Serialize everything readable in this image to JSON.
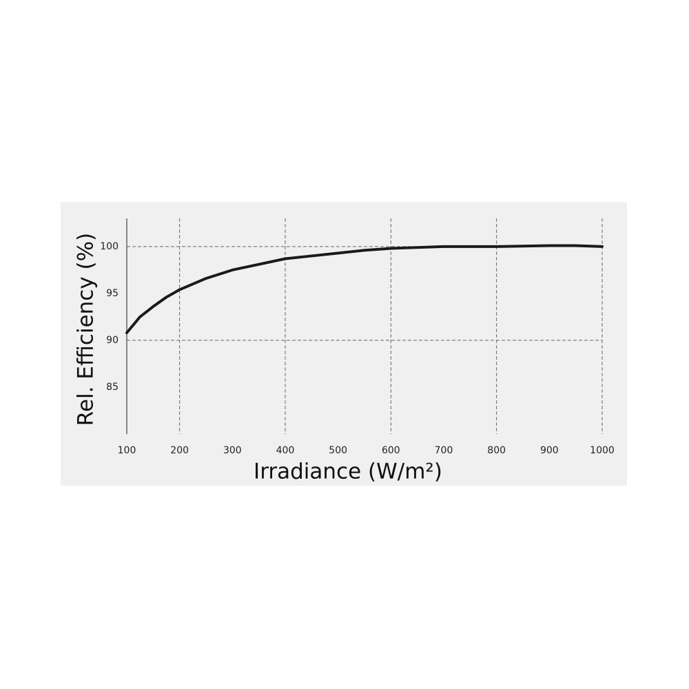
{
  "chart_data": {
    "type": "line",
    "x_label": "Irradiance (W/m²)",
    "y_label": "Rel. Efficiency (%)",
    "x": [
      100,
      125,
      150,
      175,
      200,
      250,
      300,
      350,
      400,
      450,
      500,
      550,
      600,
      650,
      700,
      800,
      900,
      950,
      1000
    ],
    "series": [
      {
        "color": "#1a1a1a",
        "values": [
          90.8,
          92.5,
          93.6,
          94.6,
          95.4,
          96.6,
          97.5,
          98.1,
          98.7,
          99.0,
          99.3,
          99.6,
          99.8,
          99.9,
          100.0,
          100.0,
          100.1,
          100.1,
          100.0
        ]
      }
    ],
    "xlim": [
      100,
      1000
    ],
    "ylim": [
      80,
      103
    ],
    "xticks": [
      100,
      200,
      300,
      400,
      500,
      600,
      700,
      800,
      900,
      1000
    ],
    "yticks": [
      85,
      90,
      95,
      100
    ],
    "x_grid_lines": [
      200,
      400,
      600,
      800,
      1000
    ],
    "y_grid_lines": [
      90,
      100
    ]
  }
}
